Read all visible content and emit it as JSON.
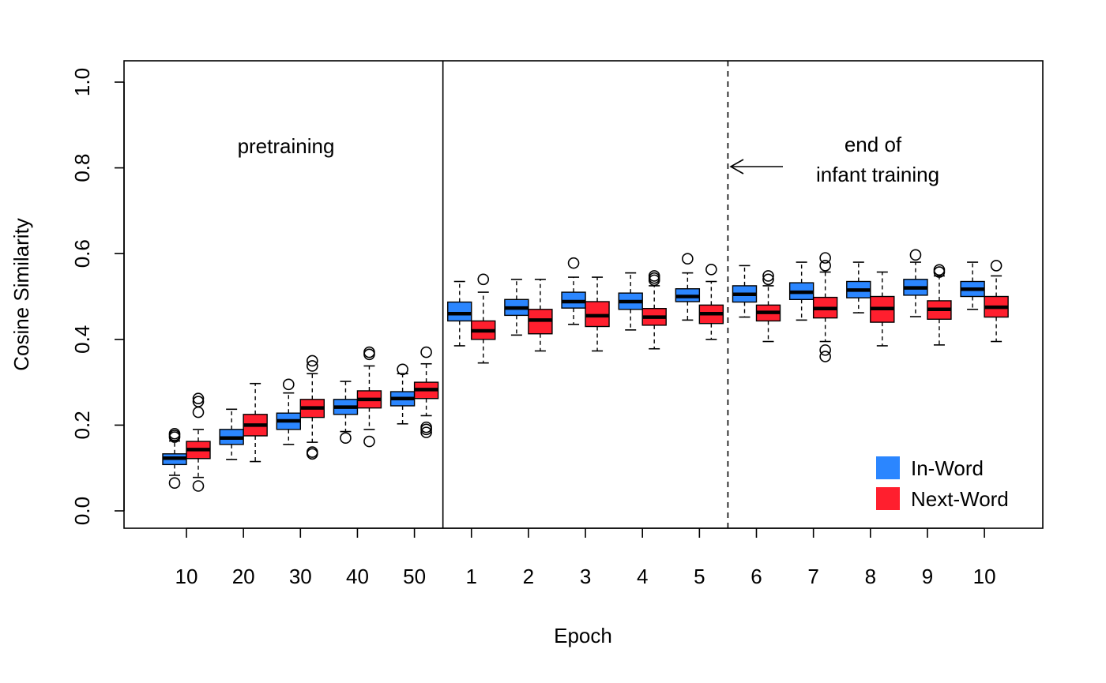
{
  "chart_data": {
    "type": "boxplot",
    "title": "",
    "xlabel": "Epoch",
    "ylabel": "Cosine Similarity",
    "ylim": [
      0.0,
      1.0
    ],
    "yticks": [
      "0.0",
      "0.2",
      "0.4",
      "0.6",
      "0.8",
      "1.0"
    ],
    "x_tick_labels": [
      "10",
      "20",
      "30",
      "40",
      "50",
      "1",
      "2",
      "3",
      "4",
      "5",
      "6",
      "7",
      "8",
      "9",
      "10"
    ],
    "series": [
      {
        "name": "In-Word",
        "color": "#2b86ff"
      },
      {
        "name": "Next-Word",
        "color": "#ff1f2e"
      }
    ],
    "annotations": {
      "pretraining": "pretraining",
      "end_line1": "end of",
      "end_line2": "infant training"
    },
    "separators": [
      {
        "after_group": 5,
        "style": "solid",
        "meaning": "end of pretraining"
      },
      {
        "after_group": 10,
        "style": "dashed",
        "meaning": "end of infant training"
      }
    ],
    "groups": [
      {
        "label": "10",
        "boxes": [
          {
            "series": "In-Word",
            "q1": 0.108,
            "median": 0.123,
            "q3": 0.133,
            "wlo": 0.083,
            "whi": 0.163,
            "outliers": [
              0.065,
              0.172,
              0.176,
              0.18
            ]
          },
          {
            "series": "Next-Word",
            "q1": 0.122,
            "median": 0.143,
            "q3": 0.162,
            "wlo": 0.078,
            "whi": 0.19,
            "outliers": [
              0.058,
              0.23,
              0.255,
              0.262
            ]
          }
        ]
      },
      {
        "label": "20",
        "boxes": [
          {
            "series": "In-Word",
            "q1": 0.155,
            "median": 0.17,
            "q3": 0.19,
            "wlo": 0.12,
            "whi": 0.237,
            "outliers": []
          },
          {
            "series": "Next-Word",
            "q1": 0.175,
            "median": 0.2,
            "q3": 0.225,
            "wlo": 0.115,
            "whi": 0.297,
            "outliers": []
          }
        ]
      },
      {
        "label": "30",
        "boxes": [
          {
            "series": "In-Word",
            "q1": 0.19,
            "median": 0.21,
            "q3": 0.228,
            "wlo": 0.155,
            "whi": 0.275,
            "outliers": [
              0.295
            ]
          },
          {
            "series": "Next-Word",
            "q1": 0.218,
            "median": 0.24,
            "q3": 0.26,
            "wlo": 0.16,
            "whi": 0.32,
            "outliers": [
              0.133,
              0.137,
              0.338,
              0.35
            ]
          }
        ]
      },
      {
        "label": "40",
        "boxes": [
          {
            "series": "In-Word",
            "q1": 0.225,
            "median": 0.242,
            "q3": 0.26,
            "wlo": 0.185,
            "whi": 0.302,
            "outliers": [
              0.17
            ]
          },
          {
            "series": "Next-Word",
            "q1": 0.24,
            "median": 0.26,
            "q3": 0.28,
            "wlo": 0.19,
            "whi": 0.338,
            "outliers": [
              0.162,
              0.365,
              0.37
            ]
          }
        ]
      },
      {
        "label": "50",
        "boxes": [
          {
            "series": "In-Word",
            "q1": 0.245,
            "median": 0.262,
            "q3": 0.278,
            "wlo": 0.203,
            "whi": 0.32,
            "outliers": [
              0.33
            ]
          },
          {
            "series": "Next-Word",
            "q1": 0.262,
            "median": 0.283,
            "q3": 0.3,
            "wlo": 0.222,
            "whi": 0.343,
            "outliers": [
              0.183,
              0.19,
              0.195,
              0.37
            ]
          }
        ]
      },
      {
        "label": "1",
        "boxes": [
          {
            "series": "In-Word",
            "q1": 0.443,
            "median": 0.46,
            "q3": 0.487,
            "wlo": 0.385,
            "whi": 0.535,
            "outliers": []
          },
          {
            "series": "Next-Word",
            "q1": 0.4,
            "median": 0.42,
            "q3": 0.443,
            "wlo": 0.345,
            "whi": 0.51,
            "outliers": [
              0.54
            ]
          }
        ]
      },
      {
        "label": "2",
        "boxes": [
          {
            "series": "In-Word",
            "q1": 0.456,
            "median": 0.473,
            "q3": 0.493,
            "wlo": 0.41,
            "whi": 0.54,
            "outliers": []
          },
          {
            "series": "Next-Word",
            "q1": 0.413,
            "median": 0.445,
            "q3": 0.47,
            "wlo": 0.373,
            "whi": 0.54,
            "outliers": []
          }
        ]
      },
      {
        "label": "3",
        "boxes": [
          {
            "series": "In-Word",
            "q1": 0.473,
            "median": 0.488,
            "q3": 0.51,
            "wlo": 0.435,
            "whi": 0.545,
            "outliers": [
              0.578
            ]
          },
          {
            "series": "Next-Word",
            "q1": 0.43,
            "median": 0.455,
            "q3": 0.488,
            "wlo": 0.373,
            "whi": 0.545,
            "outliers": []
          }
        ]
      },
      {
        "label": "4",
        "boxes": [
          {
            "series": "In-Word",
            "q1": 0.47,
            "median": 0.488,
            "q3": 0.508,
            "wlo": 0.422,
            "whi": 0.555,
            "outliers": []
          },
          {
            "series": "Next-Word",
            "q1": 0.433,
            "median": 0.452,
            "q3": 0.472,
            "wlo": 0.378,
            "whi": 0.525,
            "outliers": [
              0.538,
              0.543,
              0.548
            ]
          }
        ]
      },
      {
        "label": "5",
        "boxes": [
          {
            "series": "In-Word",
            "q1": 0.488,
            "median": 0.5,
            "q3": 0.518,
            "wlo": 0.445,
            "whi": 0.555,
            "outliers": [
              0.588
            ]
          },
          {
            "series": "Next-Word",
            "q1": 0.437,
            "median": 0.46,
            "q3": 0.48,
            "wlo": 0.4,
            "whi": 0.535,
            "outliers": [
              0.563
            ]
          }
        ]
      },
      {
        "label": "6",
        "boxes": [
          {
            "series": "In-Word",
            "q1": 0.487,
            "median": 0.505,
            "q3": 0.525,
            "wlo": 0.452,
            "whi": 0.572,
            "outliers": []
          },
          {
            "series": "Next-Word",
            "q1": 0.443,
            "median": 0.463,
            "q3": 0.48,
            "wlo": 0.395,
            "whi": 0.525,
            "outliers": [
              0.54,
              0.548
            ]
          }
        ]
      },
      {
        "label": "7",
        "boxes": [
          {
            "series": "In-Word",
            "q1": 0.493,
            "median": 0.51,
            "q3": 0.532,
            "wlo": 0.445,
            "whi": 0.58,
            "outliers": []
          },
          {
            "series": "Next-Word",
            "q1": 0.45,
            "median": 0.472,
            "q3": 0.498,
            "wlo": 0.395,
            "whi": 0.557,
            "outliers": [
              0.36,
              0.375,
              0.572,
              0.59
            ]
          }
        ]
      },
      {
        "label": "8",
        "boxes": [
          {
            "series": "In-Word",
            "q1": 0.497,
            "median": 0.515,
            "q3": 0.535,
            "wlo": 0.462,
            "whi": 0.58,
            "outliers": []
          },
          {
            "series": "Next-Word",
            "q1": 0.44,
            "median": 0.472,
            "q3": 0.5,
            "wlo": 0.385,
            "whi": 0.557,
            "outliers": []
          }
        ]
      },
      {
        "label": "9",
        "boxes": [
          {
            "series": "In-Word",
            "q1": 0.503,
            "median": 0.52,
            "q3": 0.54,
            "wlo": 0.453,
            "whi": 0.58,
            "outliers": [
              0.597
            ]
          },
          {
            "series": "Next-Word",
            "q1": 0.447,
            "median": 0.47,
            "q3": 0.49,
            "wlo": 0.387,
            "whi": 0.548,
            "outliers": [
              0.557,
              0.562
            ]
          }
        ]
      },
      {
        "label": "10",
        "boxes": [
          {
            "series": "In-Word",
            "q1": 0.5,
            "median": 0.517,
            "q3": 0.535,
            "wlo": 0.47,
            "whi": 0.58,
            "outliers": []
          },
          {
            "series": "Next-Word",
            "q1": 0.452,
            "median": 0.475,
            "q3": 0.5,
            "wlo": 0.395,
            "whi": 0.548,
            "outliers": [
              0.572
            ]
          }
        ]
      }
    ]
  }
}
